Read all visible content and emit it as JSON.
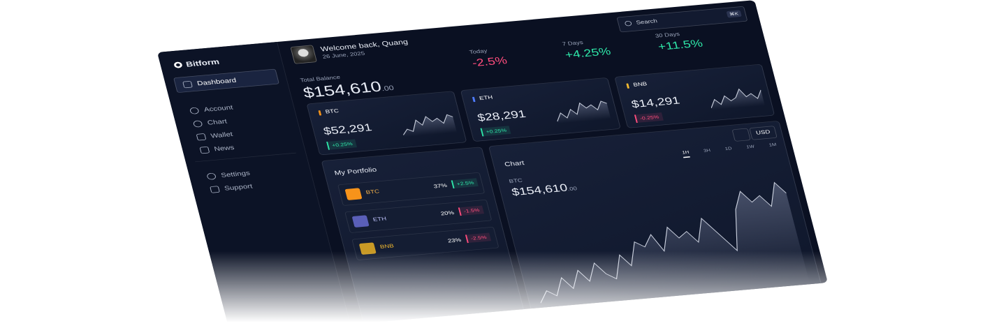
{
  "brand": "Bitform",
  "nav": {
    "primary": [
      "Dashboard",
      "Account",
      "Chart",
      "Wallet",
      "News"
    ],
    "secondary": [
      "Settings",
      "Support"
    ]
  },
  "header": {
    "welcome": "Welcome back, Quang",
    "date": "26 June, 2025",
    "search": "Search",
    "shortcut": "⌘K"
  },
  "balance": {
    "label": "Total Balance",
    "amount": "$154,610",
    "cents": ".00"
  },
  "periods": [
    {
      "label": "Today",
      "change": "-2.5%"
    },
    {
      "label": "7 Days",
      "change": "+4.25%"
    },
    {
      "label": "30 Days",
      "change": "+11.5%"
    }
  ],
  "cards": [
    {
      "symbol": "BTC",
      "price": "$52,291",
      "change": "+0.25%",
      "spark": [
        3,
        5,
        4,
        8,
        6,
        9,
        7,
        8,
        6,
        9,
        8
      ]
    },
    {
      "symbol": "ETH",
      "price": "$28,291",
      "change": "+0.25%",
      "spark": [
        2,
        5,
        3,
        6,
        4,
        8,
        6,
        7,
        5,
        8,
        7
      ]
    },
    {
      "symbol": "BNB",
      "price": "$14,291",
      "change": "-0.25%",
      "spark": [
        3,
        6,
        4,
        7,
        5,
        6,
        9,
        6,
        7,
        5,
        8
      ]
    }
  ],
  "portfolio": {
    "title": "My Portfolio",
    "rows": [
      {
        "symbol": "BTC",
        "share": "37%",
        "change": "+2.5%"
      },
      {
        "symbol": "ETH",
        "share": "20%",
        "change": "-1.5%"
      },
      {
        "symbol": "BNB",
        "share": "23%",
        "change": "-2.5%"
      }
    ]
  },
  "chart": {
    "title": "Chart",
    "currency": "USD",
    "ranges": [
      "1H",
      "3H",
      "1D",
      "1W",
      "1M"
    ],
    "asset": "BTC",
    "price": "$154,610",
    "cents": ".00",
    "values": [
      2,
      4,
      3,
      6,
      4,
      7,
      5,
      8,
      6,
      5,
      9,
      7,
      11,
      10,
      12,
      9,
      13,
      11,
      12,
      10,
      14,
      12,
      10,
      8,
      15,
      18,
      16,
      17,
      15,
      19,
      17
    ]
  }
}
